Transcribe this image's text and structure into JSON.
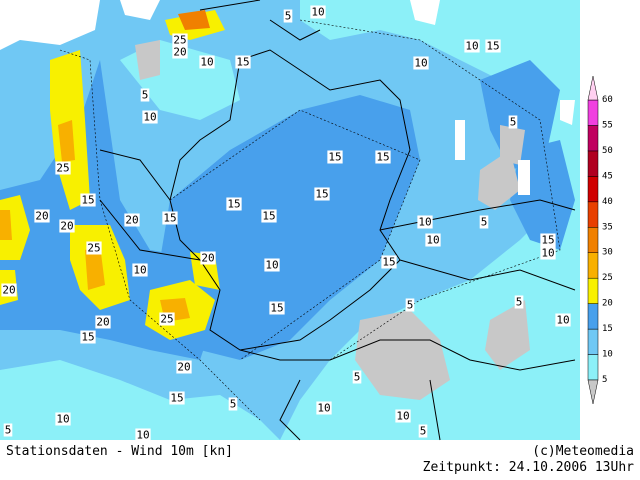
{
  "footer": {
    "left": "Stationsdaten - Wind 10m [kn]",
    "right": "(c)Meteomedia",
    "time": "Zeitpunkt: 24.10.2006 13Uhr"
  },
  "legend": {
    "under_color": "#c8c8c8",
    "over_color": "#ffd0f0",
    "bins": [
      {
        "value": 5,
        "color": "#8cf0f8"
      },
      {
        "value": 10,
        "color": "#70c8f4"
      },
      {
        "value": 15,
        "color": "#48a0ec"
      },
      {
        "value": 20,
        "color": "#f8f000"
      },
      {
        "value": 25,
        "color": "#f8b000"
      },
      {
        "value": 30,
        "color": "#f08000"
      },
      {
        "value": 35,
        "color": "#e84000"
      },
      {
        "value": 40,
        "color": "#d00000"
      },
      {
        "value": 45,
        "color": "#b00020"
      },
      {
        "value": 50,
        "color": "#c00060"
      },
      {
        "value": 55,
        "color": "#f040e0"
      },
      {
        "value": 60,
        "color": "#ff80f0"
      }
    ]
  },
  "contour_labels": [
    25,
    20,
    10,
    15,
    5,
    10,
    5,
    10,
    25,
    20,
    20,
    15,
    20,
    15,
    15,
    15,
    15,
    15,
    15,
    10,
    15,
    10,
    5,
    10,
    10,
    5,
    15,
    10,
    25,
    10,
    20,
    10,
    15,
    5,
    10,
    5,
    20,
    20,
    15,
    25,
    20,
    15,
    5,
    15,
    5,
    10,
    10,
    5,
    10,
    10,
    5
  ]
}
